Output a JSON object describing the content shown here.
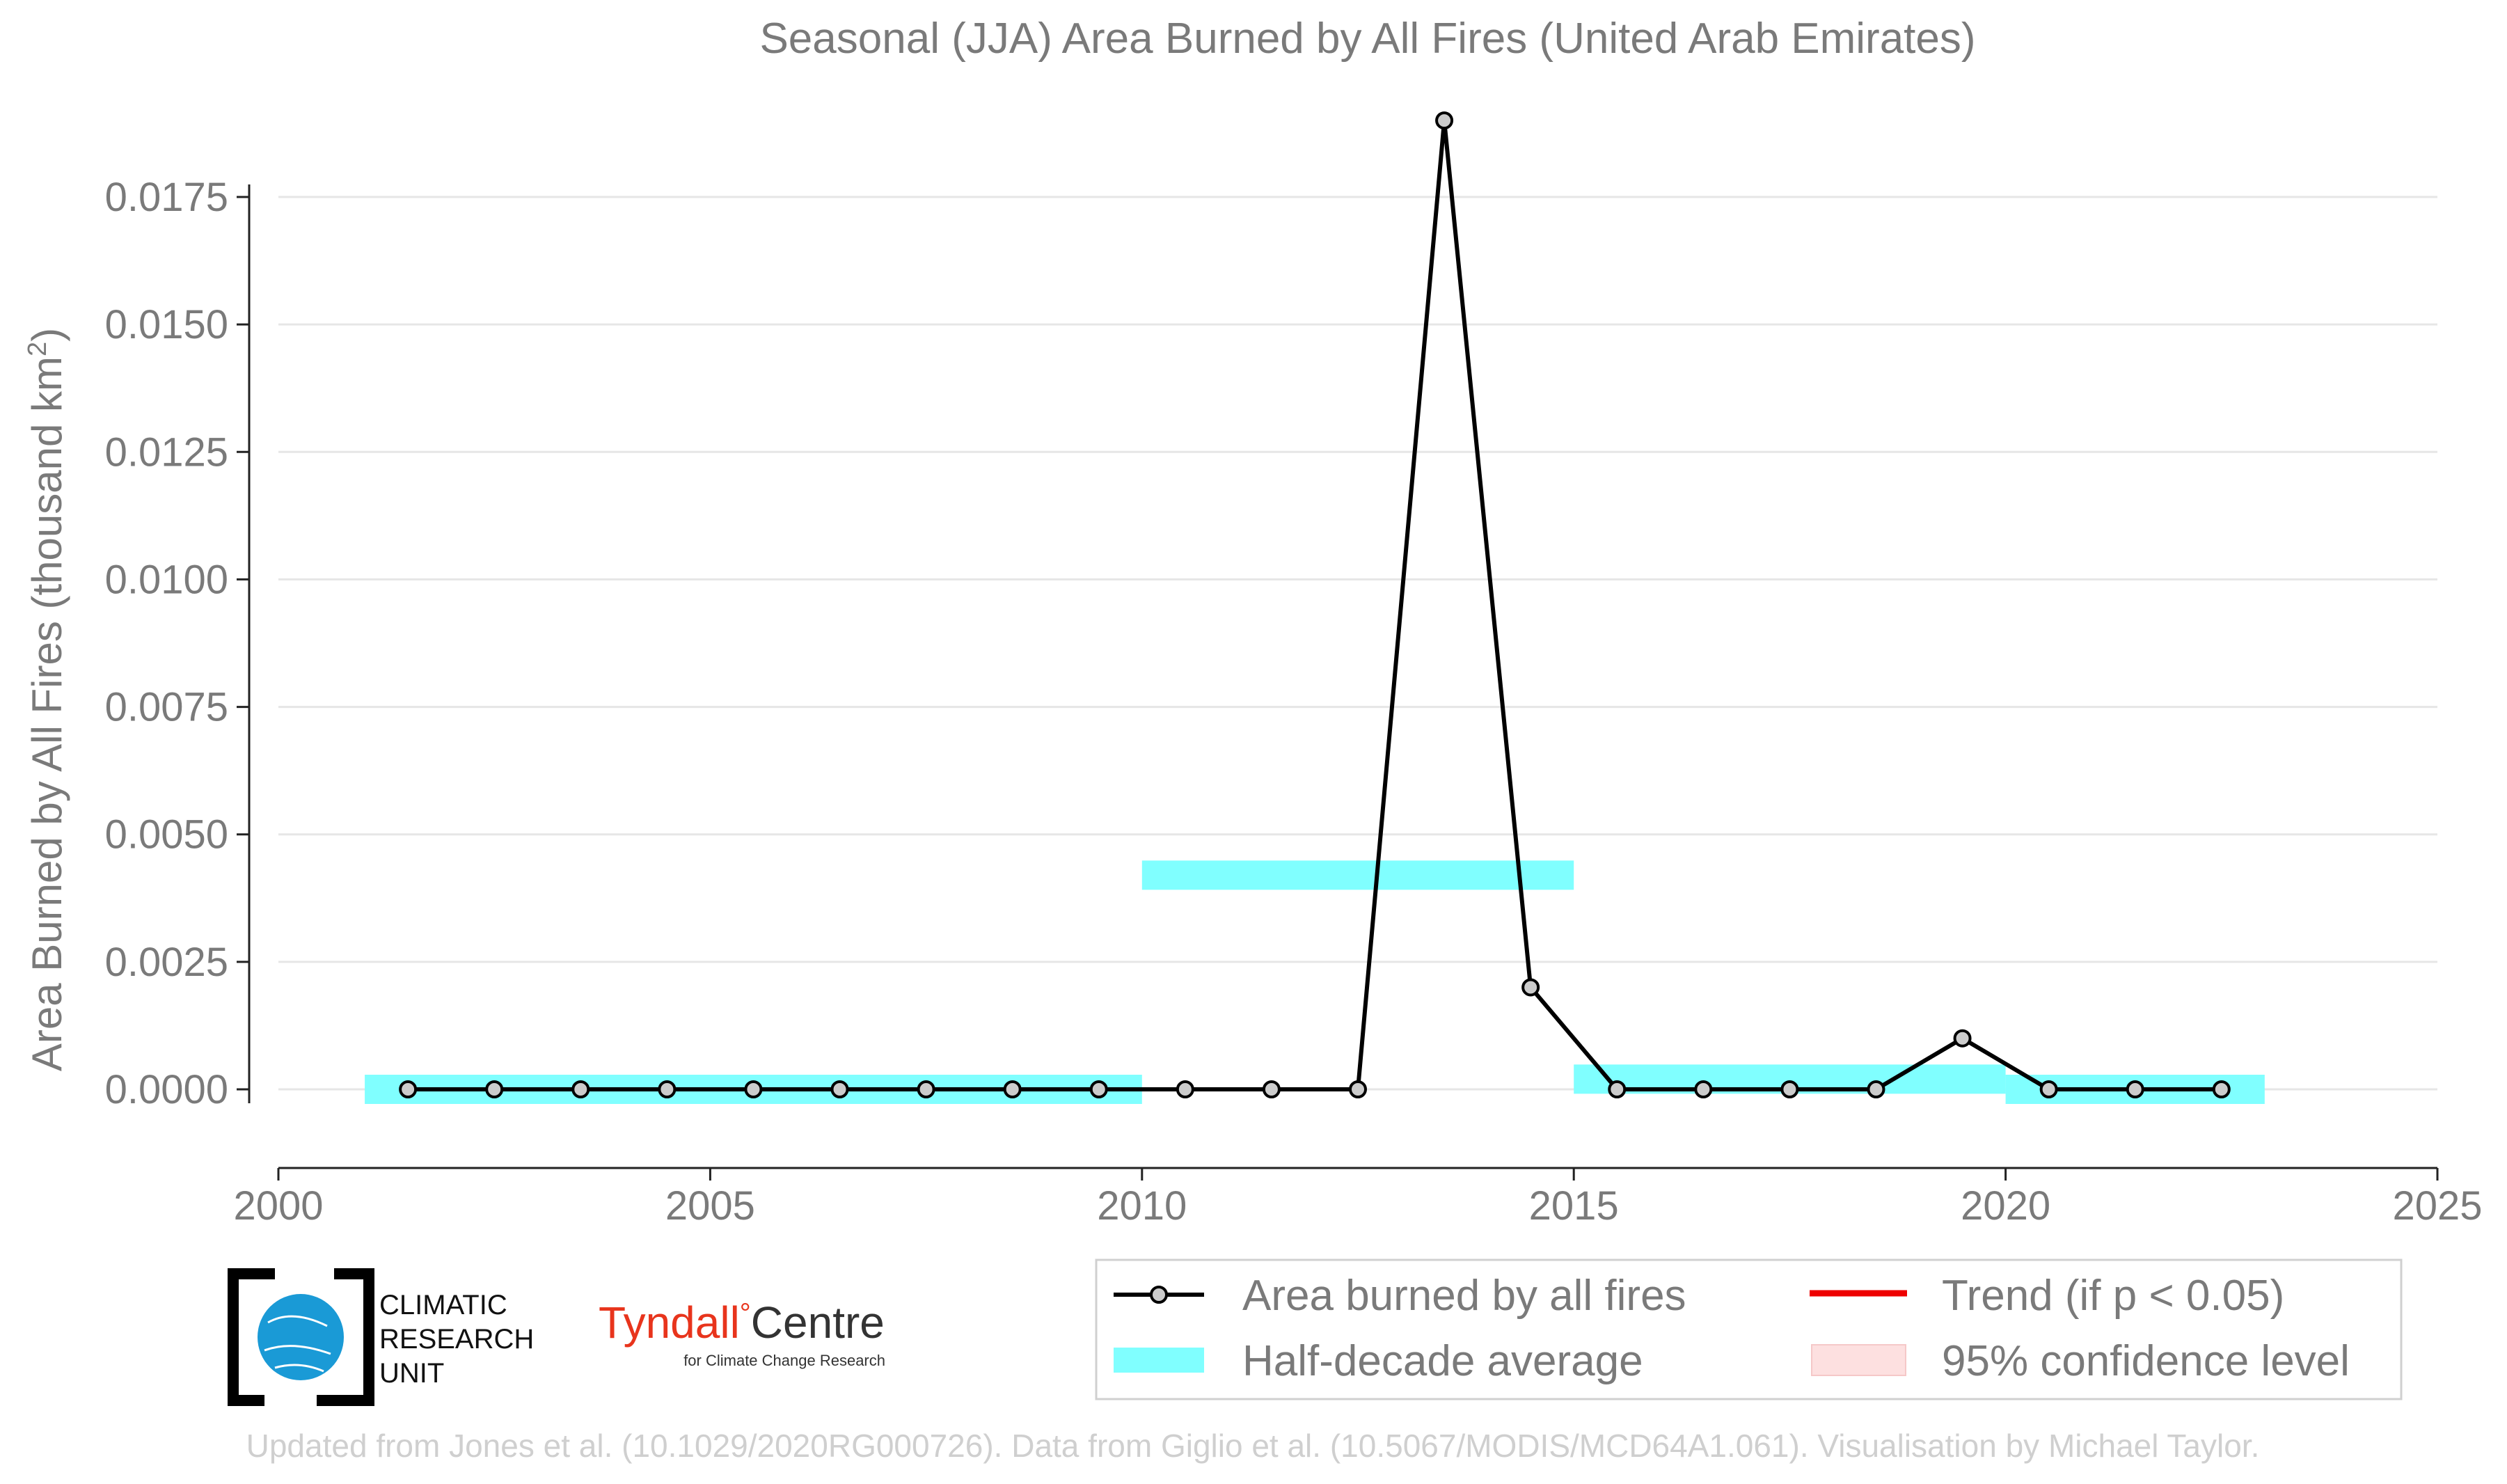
{
  "chart_data": {
    "type": "line",
    "title": "Seasonal (JJA) Area Burned by All Fires (United Arab Emirates)",
    "ylabel_main": "Area Burned by All Fires (thousand km",
    "ylabel_sup": "2",
    "ylabel_close": ")",
    "xlabel": "",
    "xlim": [
      2000,
      2025
    ],
    "ylim": [
      -0.0015,
      0.019
    ],
    "x_ticks": [
      2000,
      2005,
      2010,
      2015,
      2020,
      2025
    ],
    "x_tick_labels": [
      "2000",
      "2005",
      "2010",
      "2015",
      "2020",
      "2025"
    ],
    "y_ticks": [
      0,
      0.0025,
      0.005,
      0.0075,
      0.01,
      0.0125,
      0.015,
      0.0175
    ],
    "y_tick_labels": [
      "0.0000",
      "0.0025",
      "0.0050",
      "0.0075",
      "0.0100",
      "0.0125",
      "0.0150",
      "0.0175"
    ],
    "grid": true,
    "series": [
      {
        "name": "Area burned by all fires",
        "color": "#000000",
        "marker_fill": "#cccccc",
        "x": [
          2001.5,
          2002.5,
          2003.5,
          2004.5,
          2005.5,
          2006.5,
          2007.5,
          2008.5,
          2009.5,
          2010.5,
          2011.5,
          2012.5,
          2013.5,
          2014.5,
          2015.5,
          2016.5,
          2017.5,
          2018.5,
          2019.5,
          2020.5,
          2021.5,
          2022.5
        ],
        "values": [
          0,
          0,
          0,
          0,
          0,
          0,
          0,
          0,
          0,
          0,
          0,
          0,
          0.019,
          0.002,
          0,
          0,
          0,
          0,
          0.001,
          0,
          0,
          0
        ]
      }
    ],
    "half_decade_average": {
      "name": "Half-decade average",
      "color": "#80ffff",
      "segments": [
        {
          "x_start": 2001,
          "x_end": 2010,
          "value": 0
        },
        {
          "x_start": 2010,
          "x_end": 2015,
          "value": 0.0042
        },
        {
          "x_start": 2015,
          "x_end": 2020,
          "value": 0.0002
        },
        {
          "x_start": 2020,
          "x_end": 2023,
          "value": 0
        }
      ]
    },
    "legend": {
      "placement": "bottom-right",
      "items": [
        {
          "label": "Area burned by all fires",
          "kind": "line-marker",
          "color": "#000000"
        },
        {
          "label": "Trend (if p < 0.05)",
          "kind": "line",
          "color": "#ee0000"
        },
        {
          "label": "Half-decade average",
          "kind": "band",
          "color": "#80ffff"
        },
        {
          "label": "95% confidence level",
          "kind": "box",
          "color": "#fde0e0"
        }
      ]
    }
  },
  "logos": {
    "cru_lines": [
      "CLIMATIC",
      "RESEARCH",
      "UNIT"
    ],
    "tyndall_name": "Tyndall",
    "tyndall_degree": "°",
    "tyndall_centre": "Centre",
    "tyndall_sub": "for Climate Change Research"
  },
  "footer": "Updated from Jones et al. (10.1029/2020RG000726). Data from Giglio et al. (10.5067/MODIS/MCD64A1.061). Visualisation by Michael Taylor."
}
